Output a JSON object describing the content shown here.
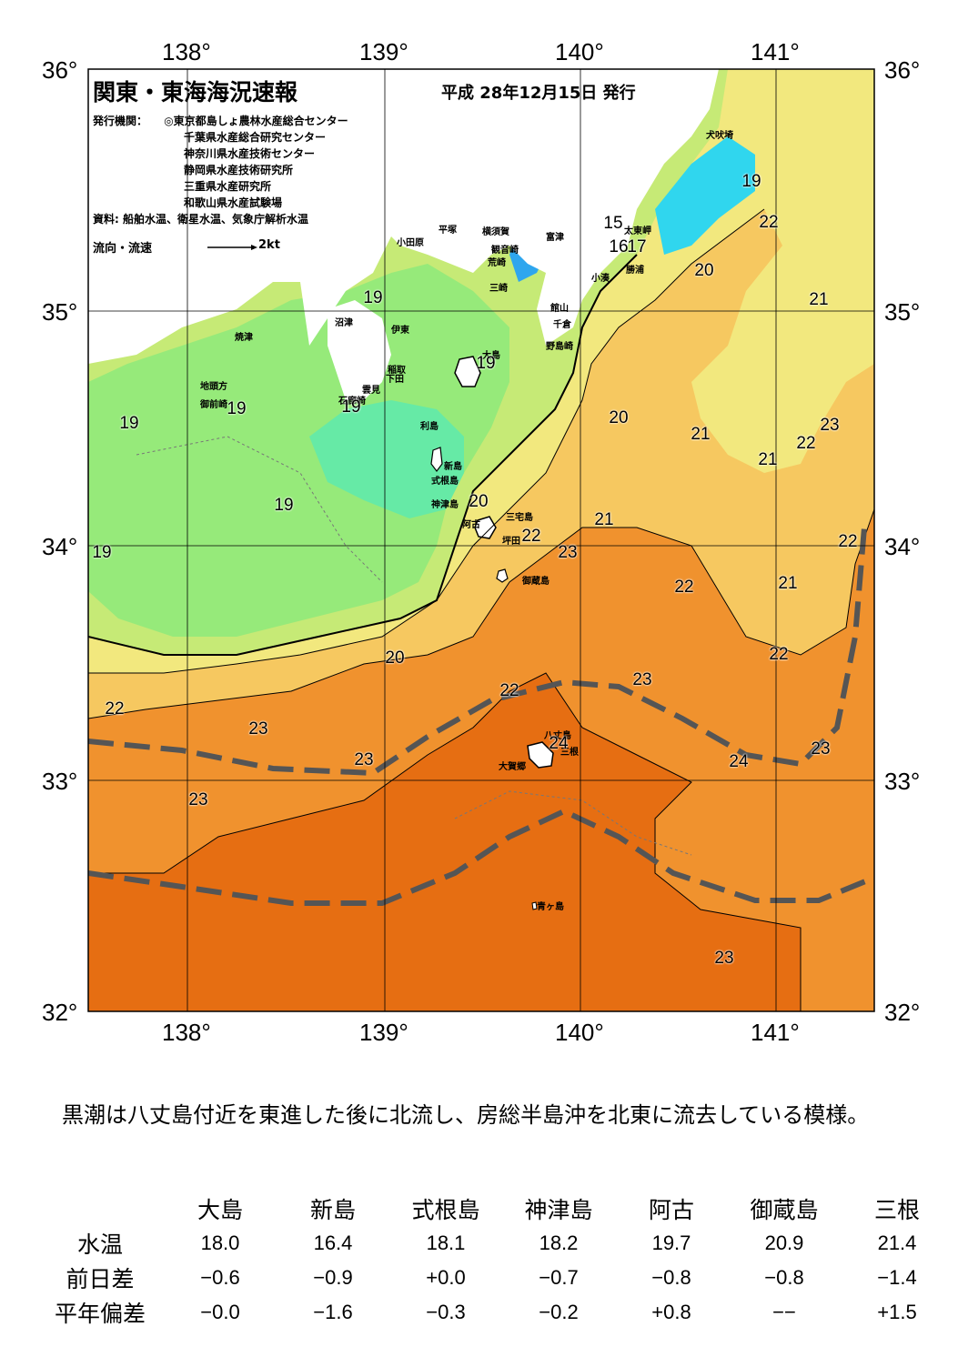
{
  "header": {
    "title": "関東・東海海況速報",
    "issue_date": "平成 28年12月15日 発行",
    "issuers_label": "発行機関：",
    "issuers": [
      "◎東京都島しょ農林水産総合センター",
      "千葉県水産総合研究センター",
      "神奈川県水産技術センター",
      "静岡県水産技術研究所",
      "三重県水産研究所",
      "和歌山県水産試験場"
    ],
    "sources": "資料: 船舶水温、衛星水温、気象庁解析水温",
    "legend_label": "流向・流速",
    "legend_scale": "2kt"
  },
  "map": {
    "lon_labels": [
      "138°",
      "139°",
      "140°",
      "141°"
    ],
    "lat_labels": [
      "36°",
      "35°",
      "34°",
      "33°",
      "32°"
    ],
    "place_names": [
      {
        "name": "犬吠埼"
      },
      {
        "name": "太東岬"
      },
      {
        "name": "勝浦"
      },
      {
        "name": "小湊"
      },
      {
        "name": "富津"
      },
      {
        "name": "館山"
      },
      {
        "name": "千倉"
      },
      {
        "name": "野島崎"
      },
      {
        "name": "横須賀"
      },
      {
        "name": "観音崎"
      },
      {
        "name": "荒崎"
      },
      {
        "name": "三崎"
      },
      {
        "name": "平塚"
      },
      {
        "name": "小田原"
      },
      {
        "name": "沼津"
      },
      {
        "name": "伊東"
      },
      {
        "name": "稲取"
      },
      {
        "name": "下田"
      },
      {
        "name": "雲見"
      },
      {
        "name": "石廊崎"
      },
      {
        "name": "焼津"
      },
      {
        "name": "地頭方"
      },
      {
        "name": "御前崎"
      },
      {
        "name": "大島"
      },
      {
        "name": "利島"
      },
      {
        "name": "新島"
      },
      {
        "name": "式根島"
      },
      {
        "name": "神津島"
      },
      {
        "name": "阿古"
      },
      {
        "name": "三宅島"
      },
      {
        "name": "坪田"
      },
      {
        "name": "御蔵島"
      },
      {
        "name": "八丈島"
      },
      {
        "name": "三根"
      },
      {
        "name": "大賀郷"
      },
      {
        "name": "青ヶ島"
      }
    ],
    "isotherm_labels": [
      "19",
      "22",
      "20",
      "21",
      "15",
      "16",
      "17",
      "19",
      "19",
      "20",
      "21",
      "23",
      "22",
      "21",
      "19",
      "19",
      "19",
      "19",
      "20",
      "21",
      "22",
      "23",
      "22",
      "21",
      "22",
      "19",
      "20",
      "22",
      "23",
      "22",
      "23",
      "22",
      "23",
      "24",
      "23",
      "24",
      "23",
      "23"
    ],
    "colors": {
      "t15": "#2ea6ee",
      "t16": "#30d6ee",
      "t17": "#48ead6",
      "t18": "#66eaa6",
      "t19": "#96ea7a",
      "t20": "#c6ea76",
      "t21": "#f2e87e",
      "t22": "#f6c860",
      "t23": "#f0922e",
      "t24": "#e66e12",
      "kuroshio": "#555555"
    }
  },
  "comment": "黒潮は八丈島付近を東進した後に北流し、房総半島沖を北東に流去している模様。",
  "stats": {
    "columns": [
      "大島",
      "新島",
      "式根島",
      "神津島",
      "阿古",
      "御蔵島",
      "三根"
    ],
    "rows": [
      {
        "label": "水温",
        "values": [
          "18.0",
          "16.4",
          "18.1",
          "18.2",
          "19.7",
          "20.9",
          "21.4"
        ]
      },
      {
        "label": "前日差",
        "values": [
          "−0.6",
          "−0.9",
          "+0.0",
          "−0.7",
          "−0.8",
          "−0.8",
          "−1.4"
        ]
      },
      {
        "label": "平年偏差",
        "values": [
          "−0.0",
          "−1.6",
          "−0.3",
          "−0.2",
          "+0.8",
          "−−",
          "+1.5"
        ]
      }
    ]
  }
}
